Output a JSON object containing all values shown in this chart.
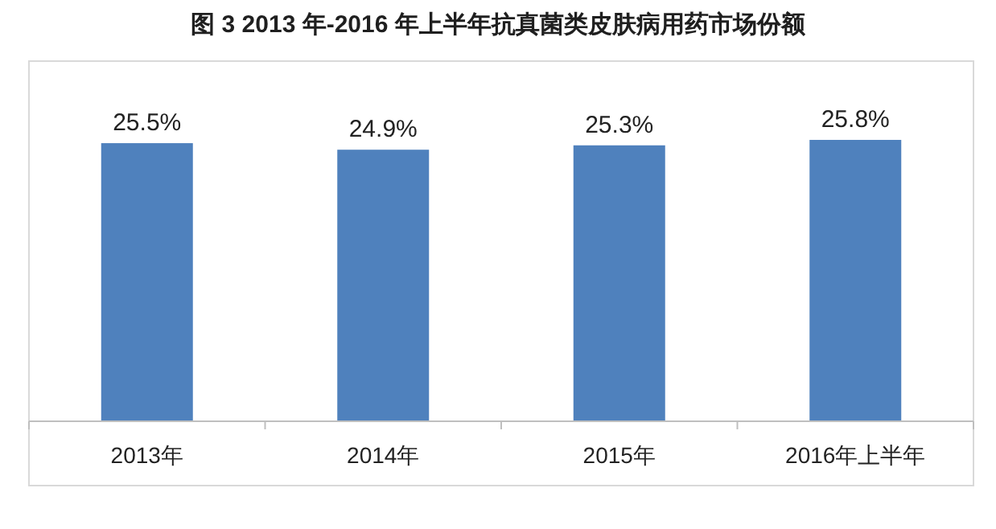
{
  "chart_data": {
    "type": "bar",
    "title": "图 3 2013 年-2016 年上半年抗真菌类皮肤病用药市场份额",
    "categories": [
      "2013年",
      "2014年",
      "2015年",
      "2016年上半年"
    ],
    "values": [
      25.5,
      24.9,
      25.3,
      25.8
    ],
    "value_labels": [
      "25.5%",
      "24.9%",
      "25.3%",
      "25.8%"
    ],
    "color": "#4f81bd"
  }
}
